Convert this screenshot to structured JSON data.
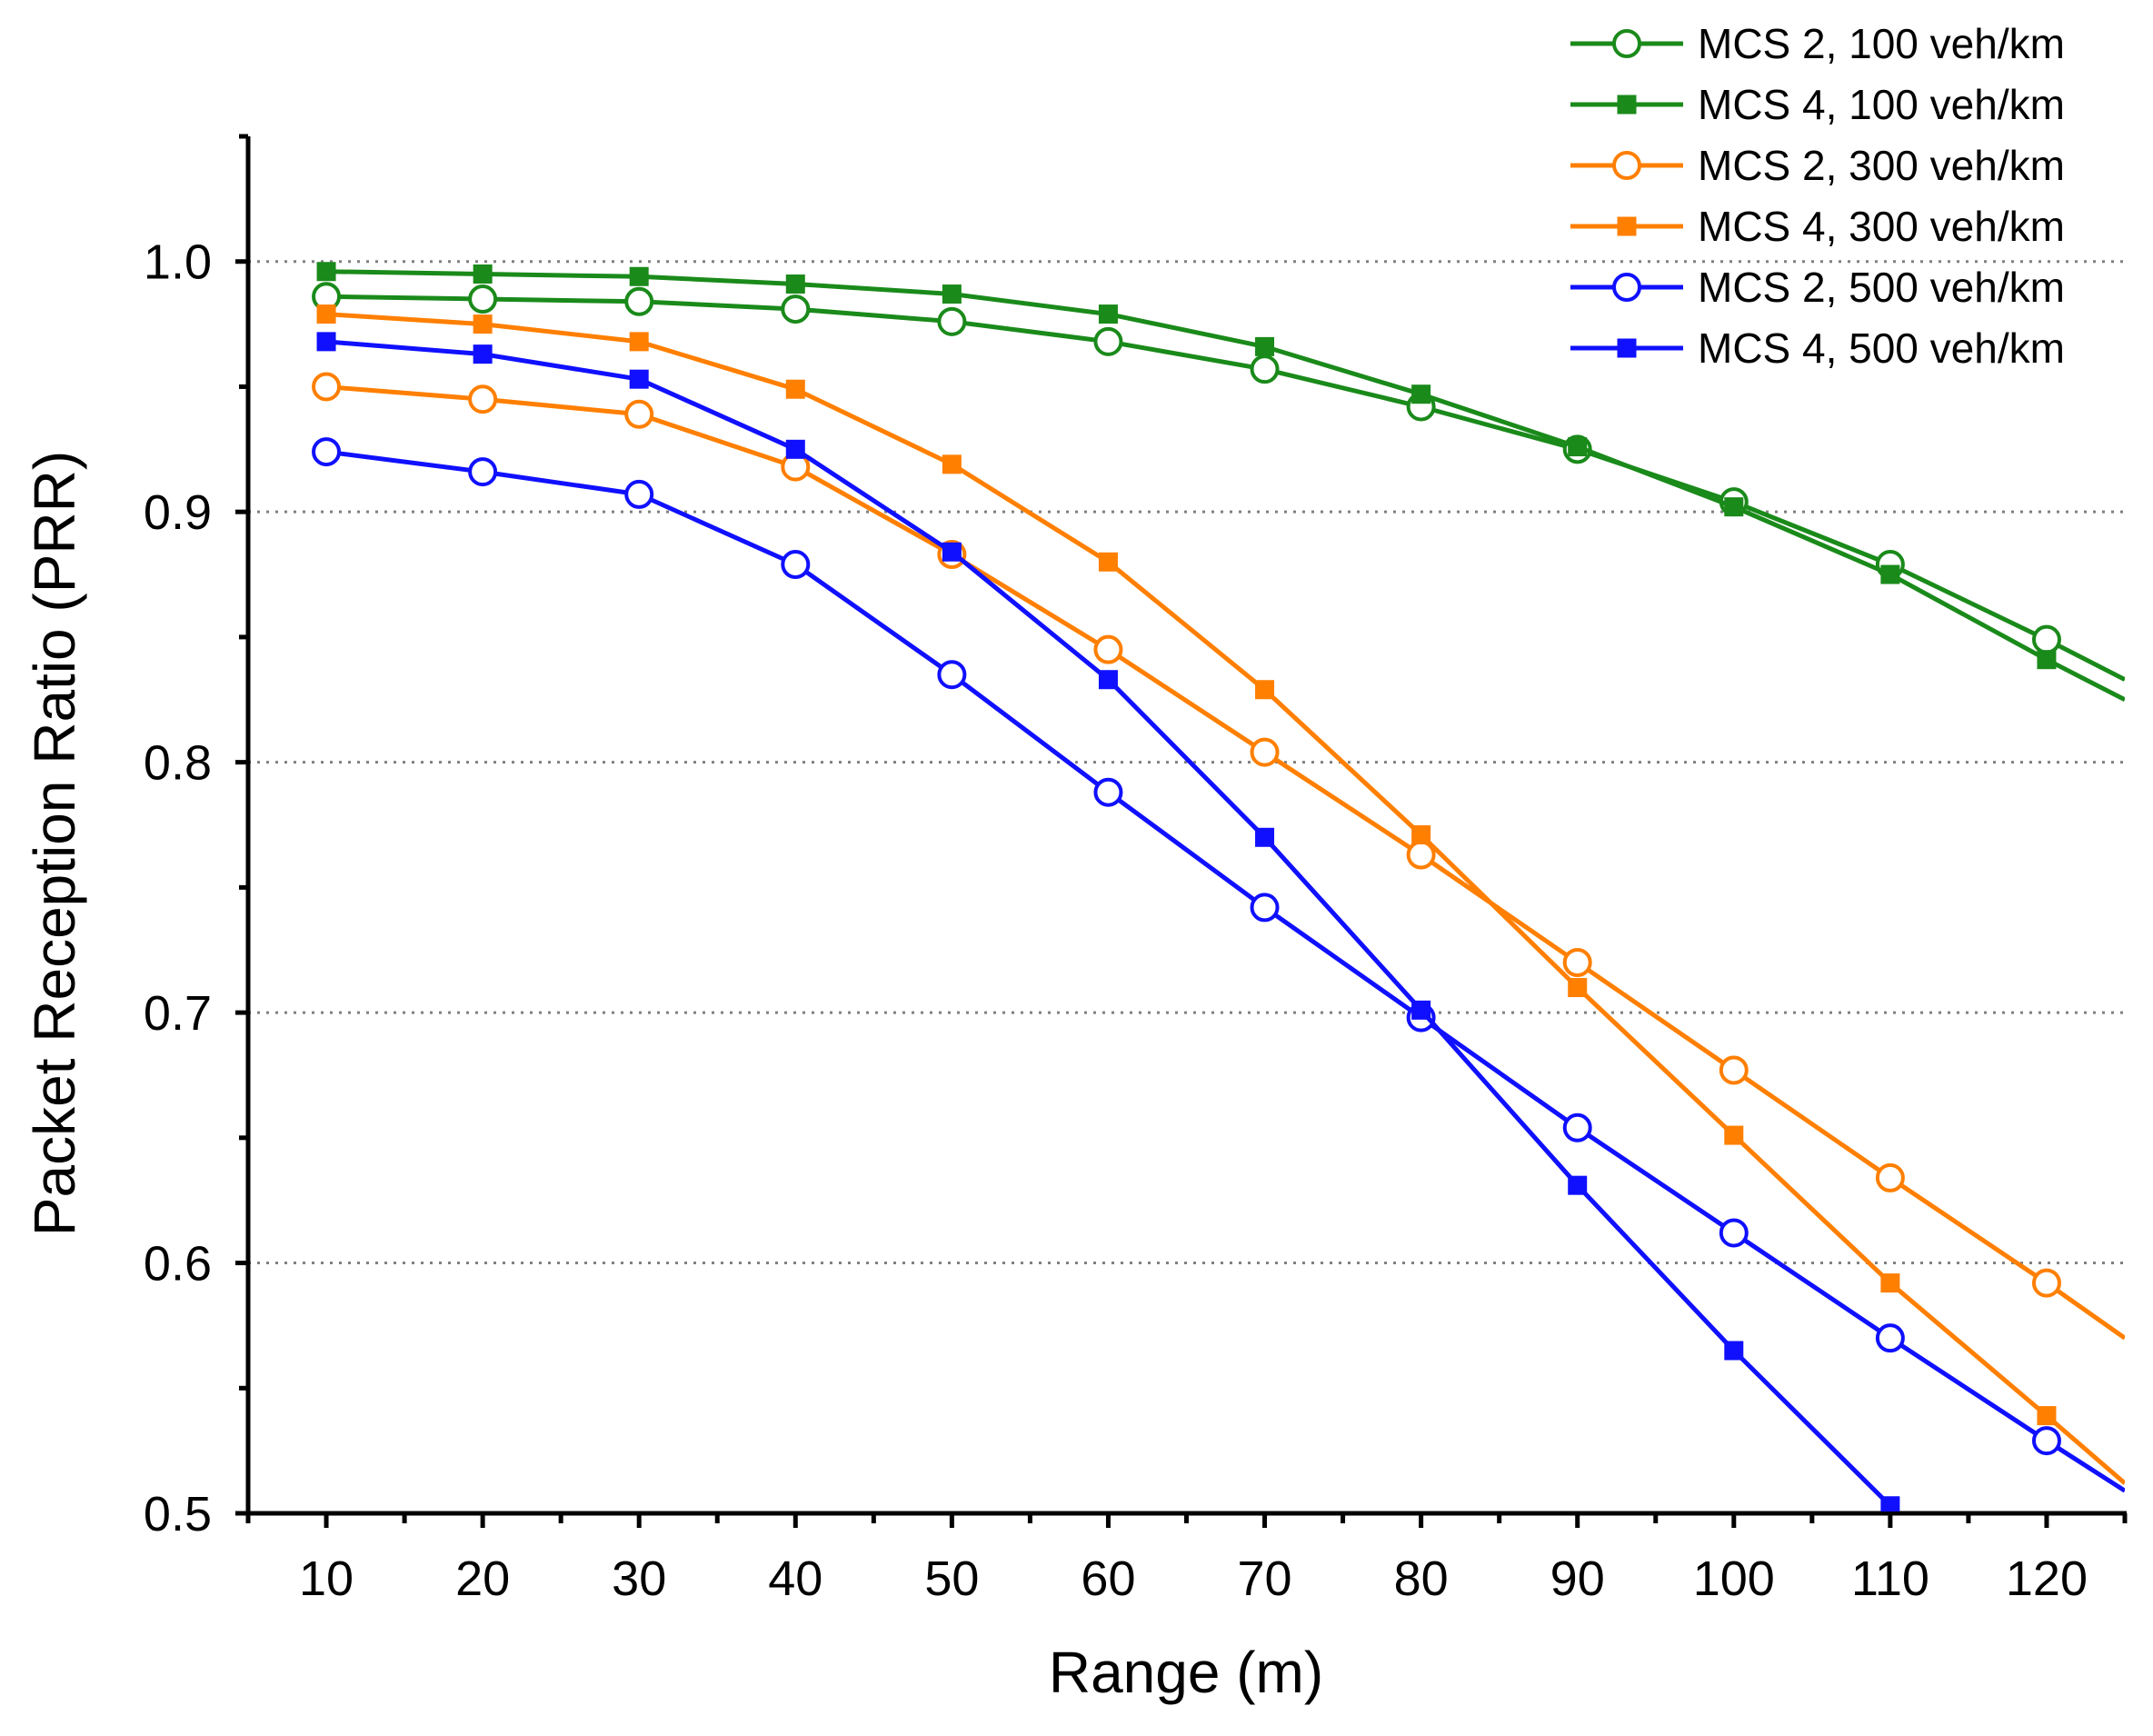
{
  "chart_data": {
    "type": "line",
    "title": "",
    "xlabel": "Range (m)",
    "ylabel": "Packet Reception Ratio (PRR)",
    "xlim": [
      5,
      125
    ],
    "ylim": [
      0.5,
      1.05
    ],
    "xticks": [
      10,
      20,
      30,
      40,
      50,
      60,
      70,
      80,
      90,
      100,
      110,
      120
    ],
    "xtick_labels": [
      "10",
      "20",
      "30",
      "40",
      "50",
      "60",
      "70",
      "80",
      "90",
      "100",
      "110",
      "120"
    ],
    "yticks": [
      0.5,
      0.6,
      0.7,
      0.8,
      0.9,
      1.0
    ],
    "ytick_labels": [
      "0.5",
      "0.6",
      "0.7",
      "0.8",
      "0.9",
      "1.0"
    ],
    "grid": "horizontal dotted at major y ticks",
    "legend_position": "top-right",
    "series": [
      {
        "name": "MCS 2, 100 veh/km",
        "color": "#1a8a1a",
        "marker": "open-circle",
        "x": [
          10,
          20,
          30,
          40,
          50,
          60,
          70,
          80,
          90,
          100,
          110,
          120,
          125
        ],
        "y": [
          0.986,
          0.985,
          0.984,
          0.981,
          0.976,
          0.968,
          0.957,
          0.942,
          0.925,
          0.904,
          0.879,
          0.849,
          0.833
        ]
      },
      {
        "name": "MCS 4, 100 veh/km",
        "color": "#1a8a1a",
        "marker": "filled-square",
        "x": [
          10,
          20,
          30,
          40,
          50,
          60,
          70,
          80,
          90,
          100,
          110,
          120,
          125
        ],
        "y": [
          0.996,
          0.995,
          0.994,
          0.991,
          0.987,
          0.979,
          0.966,
          0.947,
          0.926,
          0.902,
          0.875,
          0.841,
          0.825
        ]
      },
      {
        "name": "MCS 2, 300 veh/km",
        "color": "#ff7f00",
        "marker": "open-circle",
        "x": [
          10,
          20,
          30,
          40,
          50,
          60,
          70,
          80,
          90,
          100,
          110,
          120,
          125
        ],
        "y": [
          0.95,
          0.945,
          0.939,
          0.918,
          0.883,
          0.845,
          0.804,
          0.763,
          0.72,
          0.677,
          0.634,
          0.592,
          0.57
        ]
      },
      {
        "name": "MCS 4, 300 veh/km",
        "color": "#ff7f00",
        "marker": "filled-square",
        "x": [
          10,
          20,
          30,
          40,
          50,
          60,
          70,
          80,
          90,
          100,
          110,
          120,
          125
        ],
        "y": [
          0.979,
          0.975,
          0.968,
          0.949,
          0.919,
          0.88,
          0.829,
          0.771,
          0.71,
          0.651,
          0.592,
          0.539,
          0.512
        ]
      },
      {
        "name": "MCS 2, 500 veh/km",
        "color": "#1010ff",
        "marker": "open-circle",
        "x": [
          10,
          20,
          30,
          40,
          50,
          60,
          70,
          80,
          90,
          100,
          110,
          120,
          125
        ],
        "y": [
          0.924,
          0.916,
          0.907,
          0.879,
          0.835,
          0.788,
          0.742,
          0.698,
          0.654,
          0.612,
          0.57,
          0.529,
          0.509
        ]
      },
      {
        "name": "MCS 4, 500 veh/km",
        "color": "#1010ff",
        "marker": "filled-square",
        "x": [
          10,
          20,
          30,
          40,
          50,
          60,
          70,
          80,
          90,
          100,
          110
        ],
        "y": [
          0.968,
          0.963,
          0.953,
          0.925,
          0.884,
          0.833,
          0.77,
          0.701,
          0.631,
          0.565,
          0.503
        ]
      }
    ]
  }
}
